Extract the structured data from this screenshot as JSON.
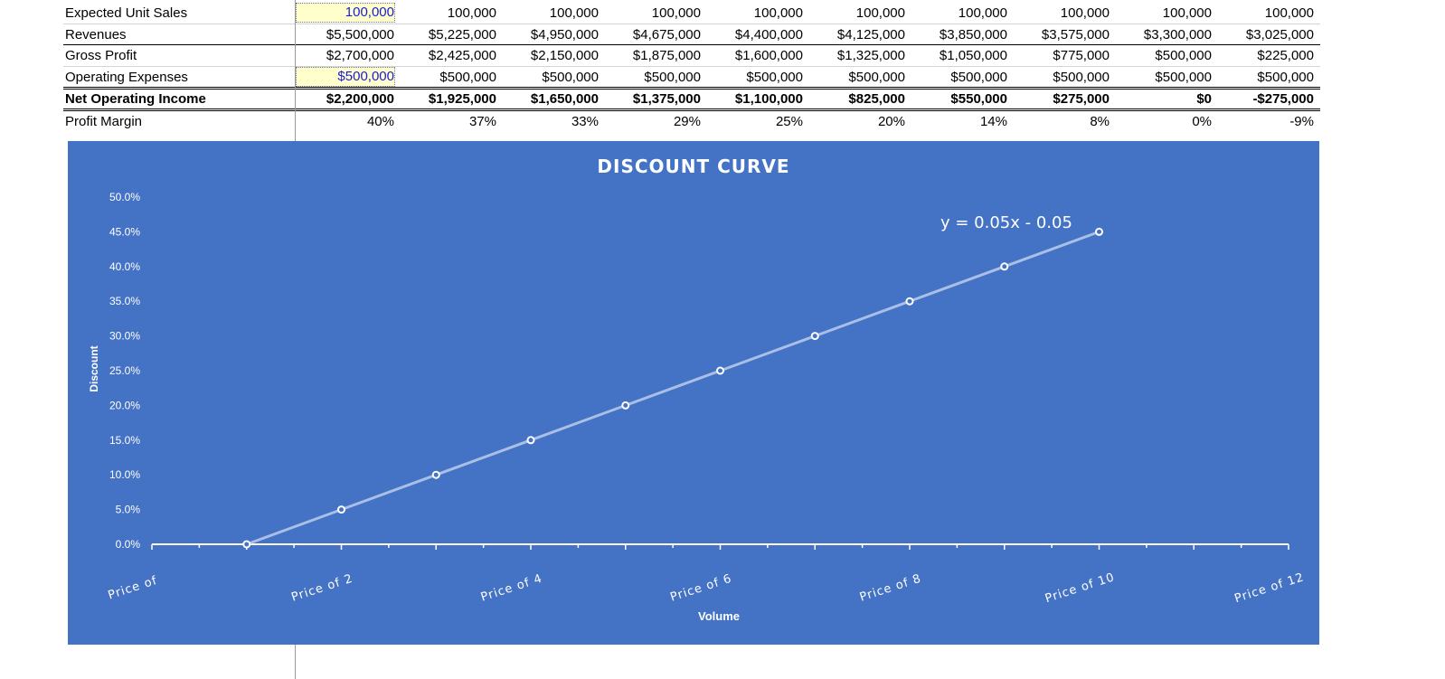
{
  "table": {
    "columns_count": 10,
    "rows": [
      {
        "label": "Expected Unit Sales",
        "values": [
          "100,000",
          "100,000",
          "100,000",
          "100,000",
          "100,000",
          "100,000",
          "100,000",
          "100,000",
          "100,000",
          "100,000"
        ]
      },
      {
        "label": "Revenues",
        "values": [
          "$5,500,000",
          "$5,225,000",
          "$4,950,000",
          "$4,675,000",
          "$4,400,000",
          "$4,125,000",
          "$3,850,000",
          "$3,575,000",
          "$3,300,000",
          "$3,025,000"
        ]
      },
      {
        "label": "Gross Profit",
        "values": [
          "$2,700,000",
          "$2,425,000",
          "$2,150,000",
          "$1,875,000",
          "$1,600,000",
          "$1,325,000",
          "$1,050,000",
          "$775,000",
          "$500,000",
          "$225,000"
        ]
      },
      {
        "label": "Operating Expenses",
        "values": [
          "$500,000",
          "$500,000",
          "$500,000",
          "$500,000",
          "$500,000",
          "$500,000",
          "$500,000",
          "$500,000",
          "$500,000",
          "$500,000"
        ]
      },
      {
        "label": "Net Operating Income",
        "values": [
          "$2,200,000",
          "$1,925,000",
          "$1,650,000",
          "$1,375,000",
          "$1,100,000",
          "$825,000",
          "$550,000",
          "$275,000",
          "$0",
          "-$275,000"
        ]
      },
      {
        "label": "Profit Margin",
        "values": [
          "40%",
          "37%",
          "33%",
          "29%",
          "25%",
          "20%",
          "14%",
          "8%",
          "0%",
          "-9%"
        ]
      }
    ],
    "colors": {
      "input_fill": "#ffffcc",
      "input_text": "#1a1adf"
    }
  },
  "chart_data": {
    "type": "line",
    "title": "DISCOUNT CURVE",
    "xlabel": "Volume",
    "ylabel": "Discount",
    "categories": [
      "Price of",
      "",
      "Price of 2",
      "",
      "Price of 4",
      "",
      "Price of 6",
      "",
      "Price of 8",
      "",
      "Price of 10",
      "",
      "Price of 12"
    ],
    "x": [
      1,
      2,
      3,
      4,
      5,
      6,
      7,
      8,
      9,
      10
    ],
    "series": [
      {
        "values": [
          0.0,
          5.0,
          10.0,
          15.0,
          20.0,
          25.0,
          30.0,
          35.0,
          40.0,
          45.0
        ]
      }
    ],
    "trendline_label": "y = 0.05x - 0.05",
    "yticks": [
      "0.0%",
      "5.0%",
      "10.0%",
      "15.0%",
      "20.0%",
      "25.0%",
      "30.0%",
      "35.0%",
      "40.0%",
      "45.0%",
      "50.0%"
    ],
    "ylim": [
      0,
      50
    ],
    "grid": false,
    "colors": {
      "background": "#4472c4",
      "line": "#a9bfe6",
      "marker": "#ffffff",
      "text": "#ffffff"
    }
  }
}
